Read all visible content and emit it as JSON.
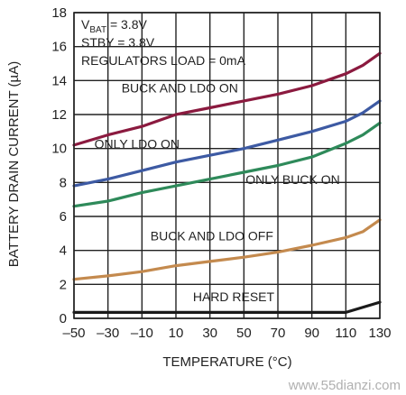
{
  "chart_data": {
    "type": "line",
    "xlabel": "TEMPERATURE (°C)",
    "ylabel": "BATTERY DRAIN CURRENT (µA)",
    "xlim": [
      -50,
      130
    ],
    "ylim": [
      0,
      18
    ],
    "xticks": [
      -50,
      -30,
      -10,
      10,
      30,
      50,
      70,
      90,
      110,
      130
    ],
    "yticks": [
      0,
      2,
      4,
      6,
      8,
      10,
      12,
      14,
      16,
      18
    ],
    "grid": true,
    "annotations": {
      "vbat_prefix": "V",
      "vbat_sub": "BAT",
      "vbat_value": " = 3.8V",
      "stby": "STBY = 3.8V",
      "regulators": "REGULATORS LOAD = 0mA"
    },
    "series": [
      {
        "name": "BUCK AND LDO ON",
        "color": "#8b1a3f",
        "x": [
          -50,
          -30,
          -10,
          10,
          30,
          50,
          70,
          90,
          110,
          120,
          130
        ],
        "y": [
          10.2,
          10.8,
          11.3,
          12.0,
          12.4,
          12.8,
          13.2,
          13.7,
          14.4,
          14.9,
          15.6
        ]
      },
      {
        "name": "ONLY LDO ON",
        "color": "#3d5aa3",
        "x": [
          -50,
          -30,
          -10,
          10,
          30,
          50,
          70,
          90,
          110,
          120,
          130
        ],
        "y": [
          7.8,
          8.2,
          8.7,
          9.2,
          9.6,
          10.0,
          10.5,
          11.0,
          11.6,
          12.1,
          12.8
        ]
      },
      {
        "name": "ONLY BUCK ON",
        "color": "#2e8a5a",
        "x": [
          -50,
          -30,
          -10,
          10,
          30,
          50,
          70,
          90,
          110,
          120,
          130
        ],
        "y": [
          6.6,
          6.9,
          7.4,
          7.8,
          8.2,
          8.6,
          9.0,
          9.5,
          10.3,
          10.8,
          11.5
        ]
      },
      {
        "name": "BUCK AND LDO OFF",
        "color": "#c48a4e",
        "x": [
          -50,
          -30,
          -10,
          10,
          30,
          50,
          70,
          90,
          110,
          120,
          130
        ],
        "y": [
          2.3,
          2.5,
          2.75,
          3.1,
          3.35,
          3.6,
          3.9,
          4.3,
          4.75,
          5.1,
          5.8
        ]
      },
      {
        "name": "HARD RESET",
        "color": "#1a1a1a",
        "x": [
          -50,
          -30,
          -10,
          10,
          30,
          50,
          70,
          90,
          110,
          130
        ],
        "y": [
          0.35,
          0.35,
          0.35,
          0.35,
          0.35,
          0.35,
          0.35,
          0.35,
          0.35,
          0.95
        ]
      }
    ],
    "curve_labels": [
      {
        "text": "BUCK AND LDO ON",
        "x": -22,
        "y": 13.3
      },
      {
        "text": "ONLY LDO ON",
        "x": -38,
        "y": 10.0
      },
      {
        "text": "ONLY BUCK ON",
        "x": 51,
        "y": 7.9
      },
      {
        "text": "BUCK AND LDO OFF",
        "x": -5,
        "y": 4.6
      },
      {
        "text": "HARD RESET",
        "x": 20,
        "y": 1.0
      }
    ]
  },
  "watermark": "www.55dianzi.com"
}
